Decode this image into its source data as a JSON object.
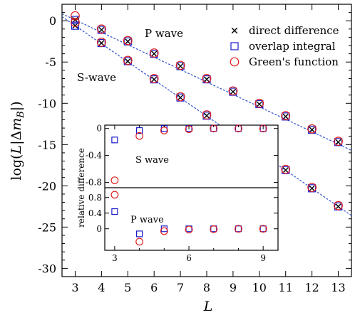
{
  "chart_data": [
    {
      "type": "scatter",
      "xlabel": "L",
      "ylabel": "log(L|Δm_B|)",
      "xlim": [
        2.5,
        13.5
      ],
      "ylim": [
        -31,
        2
      ],
      "xticks": [
        3,
        4,
        5,
        6,
        7,
        8,
        9,
        10,
        11,
        12,
        13
      ],
      "yticks": [
        0,
        -5,
        -10,
        -15,
        -20,
        -25,
        -30
      ],
      "annotations": [
        "P wave",
        "S-wave"
      ],
      "legend": {
        "placement": "top-right",
        "entries": [
          "direct difference",
          "overlap integral",
          "Green's function"
        ]
      },
      "series": [
        {
          "name": "direct difference",
          "marker": "x",
          "color": "#000000",
          "x": [
            3,
            4,
            5,
            6,
            7,
            8,
            9,
            10,
            11,
            12,
            13
          ],
          "p_wave": [
            0.1,
            -1.1,
            -2.5,
            -4.0,
            -5.5,
            -7.1,
            -8.6,
            -10.1,
            -11.6,
            -13.2,
            -14.7
          ],
          "s_wave": [
            -0.6,
            -2.7,
            -4.9,
            -7.1,
            -9.3,
            -11.5,
            -13.7,
            -15.9,
            -18.1,
            -20.3,
            -22.5
          ]
        },
        {
          "name": "overlap integral",
          "marker": "square",
          "color": "#1a1acc",
          "x": [
            3,
            4,
            5,
            6,
            7,
            8,
            9,
            10,
            11,
            12,
            13
          ],
          "p_wave": [
            0.1,
            -1.1,
            -2.5,
            -4.0,
            -5.5,
            -7.1,
            -8.6,
            -10.1,
            -11.6,
            -13.2,
            -14.7
          ],
          "s_wave": [
            -0.6,
            -2.7,
            -4.9,
            -7.1,
            -9.3,
            -11.5,
            -13.7,
            -15.9,
            -18.1,
            -20.3,
            -22.5
          ]
        },
        {
          "name": "Green's function",
          "marker": "circle",
          "color": "#e02020",
          "x": [
            3,
            4,
            5,
            6,
            7,
            8,
            9,
            10,
            11,
            12,
            13
          ],
          "p_wave": [
            0.6,
            -1.0,
            -2.4,
            -3.9,
            -5.4,
            -7.0,
            -8.5,
            -10.0,
            -11.5,
            -13.1,
            -14.6
          ],
          "s_wave": [
            -0.2,
            -2.6,
            -4.8,
            -7.0,
            -9.2,
            -11.4,
            -13.6,
            -15.8,
            -18.0,
            -20.2,
            -22.4
          ]
        }
      ],
      "fit_lines": {
        "color": "#3355cc",
        "p_wave": {
          "x0": 2.5,
          "y0": 0.86,
          "x1": 13.5,
          "y1": -15.7
        },
        "s_wave": {
          "x0": 2.5,
          "y0": 0.5,
          "x1": 13.5,
          "y1": -23.6
        }
      }
    },
    {
      "type": "scatter",
      "inset": true,
      "ylabel": "relative difference",
      "xticks": [
        3,
        6,
        9
      ],
      "xlim": [
        2.6,
        9.6
      ],
      "annotations": [
        "S wave",
        "P wave"
      ],
      "panels": [
        {
          "name": "S wave",
          "ylim": [
            -0.88,
            0.05
          ],
          "yticks": [
            0,
            -0.4,
            -0.8
          ],
          "series": [
            {
              "name": "overlap integral",
              "marker": "square",
              "color": "#1a1acc",
              "x": [
                3,
                4,
                5,
                6,
                7,
                8,
                9
              ],
              "values": [
                -0.17,
                -0.03,
                0.0,
                0.0,
                0.0,
                0.0,
                0.0
              ]
            },
            {
              "name": "Green's function",
              "marker": "circle",
              "color": "#e02020",
              "x": [
                3,
                4,
                5,
                6,
                7,
                8,
                9
              ],
              "values": [
                -0.77,
                -0.11,
                -0.03,
                -0.01,
                0.0,
                0.0,
                0.0
              ]
            }
          ]
        },
        {
          "name": "P wave",
          "ylim": [
            -0.55,
            1.05
          ],
          "yticks": [
            0.8,
            0.4,
            0
          ],
          "series": [
            {
              "name": "overlap integral",
              "marker": "square",
              "color": "#1a1acc",
              "x": [
                3,
                4,
                5,
                6,
                7,
                8,
                9
              ],
              "values": [
                0.44,
                -0.13,
                0.0,
                0.0,
                0.0,
                0.0,
                0.0
              ]
            },
            {
              "name": "Green's function",
              "marker": "circle",
              "color": "#e02020",
              "x": [
                3,
                4,
                5,
                6,
                7,
                8,
                9
              ],
              "values": [
                0.87,
                -0.33,
                -0.06,
                -0.02,
                -0.01,
                0.0,
                0.0
              ]
            }
          ]
        }
      ]
    }
  ]
}
